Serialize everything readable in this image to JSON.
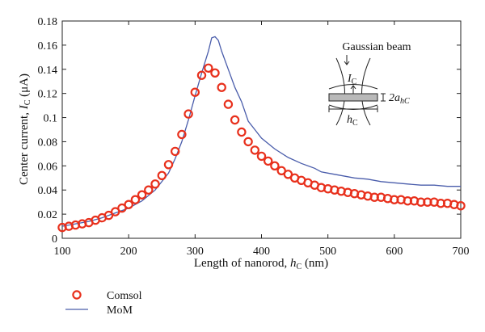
{
  "chart_data": {
    "type": "line",
    "xlabel_text": "Length of nanorod, ",
    "xlabel_var": "h",
    "xlabel_sub": "C",
    "xlabel_unit": " (nm)",
    "ylabel_text": "Center current, ",
    "ylabel_var": "I",
    "ylabel_sub": "C",
    "ylabel_unit": " (μA)",
    "xlim": [
      100,
      700
    ],
    "ylim": [
      0,
      0.18
    ],
    "xticks": [
      100,
      200,
      300,
      400,
      500,
      600,
      700
    ],
    "yticks": [
      0,
      0.02,
      0.04,
      0.06,
      0.08,
      0.1,
      0.12,
      0.14,
      0.16,
      0.18
    ],
    "grid": false,
    "legend_position": "bottom-left outside",
    "series": [
      {
        "name": "Comsol",
        "style": "markers",
        "color": "#e8301c",
        "x": [
          100,
          110,
          120,
          130,
          140,
          150,
          160,
          170,
          180,
          190,
          200,
          210,
          220,
          230,
          240,
          250,
          260,
          270,
          280,
          290,
          300,
          310,
          320,
          330,
          340,
          350,
          360,
          370,
          380,
          390,
          400,
          410,
          420,
          430,
          440,
          450,
          460,
          470,
          480,
          490,
          500,
          510,
          520,
          530,
          540,
          550,
          560,
          570,
          580,
          590,
          600,
          610,
          620,
          630,
          640,
          650,
          660,
          670,
          680,
          690,
          700
        ],
        "y": [
          0.009,
          0.01,
          0.011,
          0.012,
          0.013,
          0.015,
          0.017,
          0.019,
          0.022,
          0.025,
          0.028,
          0.032,
          0.036,
          0.04,
          0.045,
          0.052,
          0.061,
          0.072,
          0.086,
          0.103,
          0.121,
          0.135,
          0.141,
          0.137,
          0.125,
          0.111,
          0.098,
          0.088,
          0.08,
          0.073,
          0.068,
          0.064,
          0.06,
          0.056,
          0.053,
          0.05,
          0.048,
          0.046,
          0.044,
          0.042,
          0.041,
          0.04,
          0.039,
          0.038,
          0.037,
          0.036,
          0.035,
          0.034,
          0.034,
          0.033,
          0.032,
          0.032,
          0.031,
          0.031,
          0.03,
          0.03,
          0.03,
          0.029,
          0.029,
          0.028,
          0.027
        ]
      },
      {
        "name": "MoM",
        "style": "line",
        "color": "#4a5dab",
        "x": [
          100,
          120,
          140,
          160,
          180,
          200,
          220,
          240,
          260,
          270,
          280,
          290,
          300,
          310,
          320,
          325,
          330,
          335,
          340,
          350,
          360,
          370,
          375,
          380,
          390,
          400,
          420,
          440,
          460,
          480,
          490,
          500,
          520,
          540,
          560,
          580,
          600,
          620,
          640,
          660,
          680,
          700
        ],
        "y": [
          0.01,
          0.012,
          0.014,
          0.017,
          0.021,
          0.025,
          0.031,
          0.04,
          0.054,
          0.066,
          0.08,
          0.098,
          0.118,
          0.137,
          0.155,
          0.166,
          0.167,
          0.164,
          0.155,
          0.14,
          0.125,
          0.113,
          0.105,
          0.097,
          0.09,
          0.083,
          0.074,
          0.067,
          0.062,
          0.058,
          0.055,
          0.054,
          0.052,
          0.05,
          0.049,
          0.047,
          0.046,
          0.045,
          0.044,
          0.044,
          0.043,
          0.043
        ]
      }
    ],
    "inset": {
      "title": "Gaussian beam",
      "current_var": "I",
      "current_sub": "C",
      "length_var": "h",
      "length_sub": "C",
      "radius_label": "2a",
      "radius_sub": "hC"
    }
  },
  "legend": [
    {
      "label": "Comsol",
      "symbol": "circle-marker",
      "color": "#e8301c"
    },
    {
      "label": "MoM",
      "symbol": "line",
      "color": "#4a5dab"
    }
  ]
}
